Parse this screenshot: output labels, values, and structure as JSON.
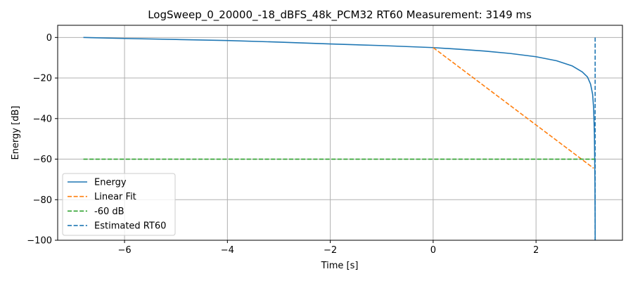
{
  "chart_data": {
    "type": "line",
    "title": "LogSweep_0_20000_-18_dBFS_48k_PCM32 RT60 Measurement: 3149 ms",
    "xlabel": "Time [s]",
    "ylabel": "Energy [dB]",
    "xlim": [
      -7.3,
      3.68
    ],
    "ylim": [
      -100,
      6
    ],
    "xticks": [
      -6,
      -4,
      -2,
      0,
      2
    ],
    "xtick_labels": [
      "−6",
      "−4",
      "−2",
      "0",
      "2"
    ],
    "yticks": [
      0,
      -20,
      -40,
      -60,
      -80,
      -100
    ],
    "ytick_labels": [
      "0",
      "−20",
      "−40",
      "−60",
      "−80",
      "−100"
    ],
    "grid": true,
    "legend_position": "lower-left",
    "series": [
      {
        "name": "Energy",
        "style": "solid",
        "color": "#1f77b4",
        "x": [
          -6.8,
          -6.0,
          -5.0,
          -4.0,
          -3.0,
          -2.0,
          -1.0,
          0.0,
          0.5,
          1.0,
          1.5,
          2.0,
          2.4,
          2.7,
          2.9,
          3.0,
          3.06,
          3.1,
          3.12,
          3.135,
          3.145,
          3.149,
          3.15
        ],
        "y": [
          0,
          -0.5,
          -1.0,
          -1.5,
          -2.3,
          -3.2,
          -4.0,
          -5.0,
          -5.8,
          -6.7,
          -7.9,
          -9.5,
          -11.5,
          -14.0,
          -17.0,
          -19.5,
          -23.0,
          -28.0,
          -35.0,
          -48.0,
          -70.0,
          -90.0,
          -100.0
        ]
      },
      {
        "name": "Linear Fit",
        "style": "dashed",
        "color": "#ff7f0e",
        "x": [
          0.0,
          3.12
        ],
        "y": [
          -5.0,
          -64.5
        ]
      },
      {
        "name": "-60 dB",
        "style": "dashed",
        "color": "#2ca02c",
        "x": [
          -6.8,
          3.15
        ],
        "y": [
          -60,
          -60
        ]
      },
      {
        "name": "Estimated RT60",
        "style": "dashed",
        "color": "#1f77b4",
        "x": [
          3.149,
          3.149
        ],
        "y": [
          0,
          -100
        ]
      }
    ]
  }
}
